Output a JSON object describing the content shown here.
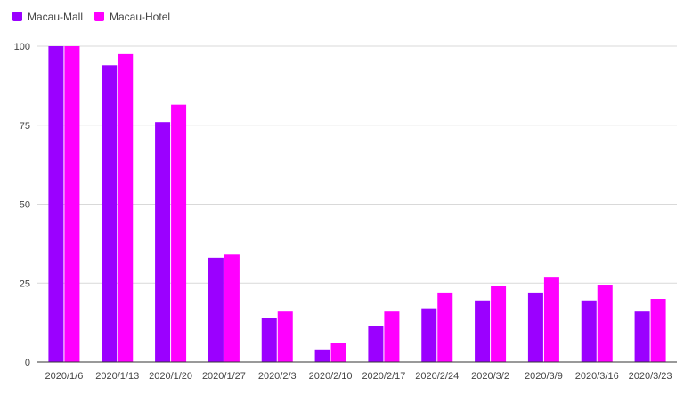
{
  "chart_data": {
    "type": "bar",
    "categories": [
      "2020/1/6",
      "2020/1/13",
      "2020/1/20",
      "2020/1/27",
      "2020/2/3",
      "2020/2/10",
      "2020/2/17",
      "2020/2/24",
      "2020/3/2",
      "2020/3/9",
      "2020/3/16",
      "2020/3/23"
    ],
    "series": [
      {
        "name": "Macau-Mall",
        "color": "#9b00ff",
        "values": [
          100,
          94,
          76,
          33,
          14,
          4,
          11.5,
          17,
          19.5,
          22,
          19.5,
          16
        ]
      },
      {
        "name": "Macau-Hotel",
        "color": "#ff00ff",
        "values": [
          100,
          97.5,
          81.5,
          34,
          16,
          6,
          16,
          22,
          24,
          27,
          24.5,
          20
        ]
      }
    ],
    "y_ticks": [
      0,
      25,
      50,
      75,
      100
    ],
    "ylim": [
      0,
      100
    ],
    "grid": true,
    "legend_position": "top-left"
  }
}
